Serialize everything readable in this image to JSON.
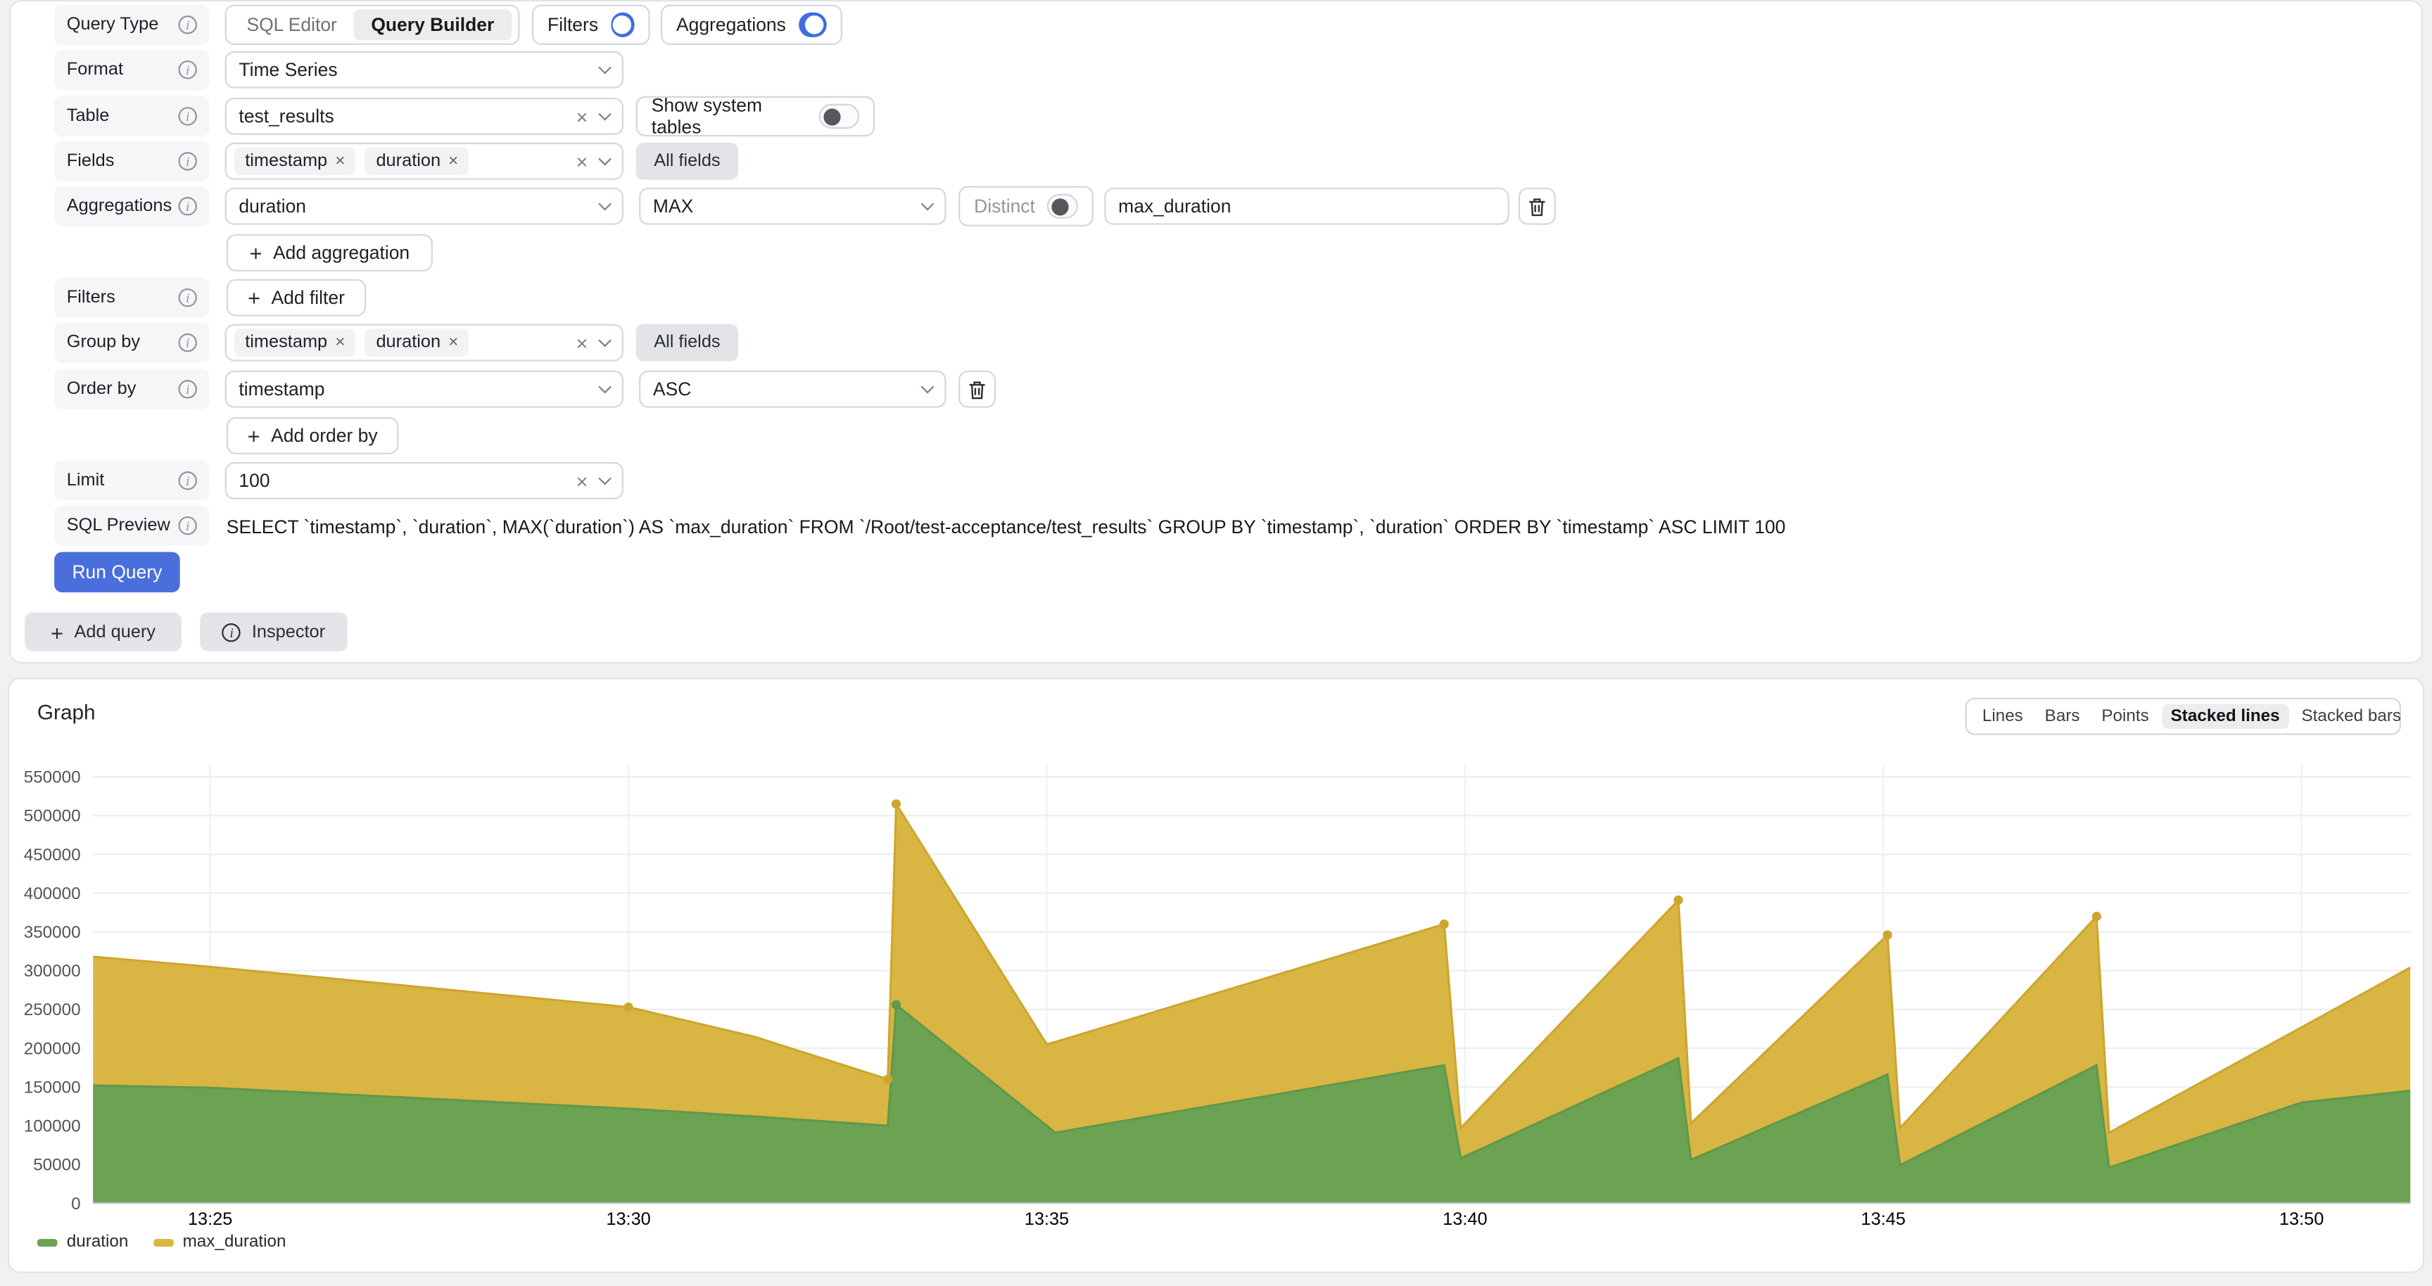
{
  "icons": {
    "plus": "+",
    "close": "×",
    "clear": "×",
    "info": "i"
  },
  "colors": {
    "accent_blue": "#3f6ce2",
    "run_button_blue": "#4a6edc",
    "duration_green": "#6ba352",
    "max_duration_yellow": "#d9b543"
  },
  "qb": {
    "query_type": {
      "label": "Query Type",
      "sql_editor": "SQL Editor",
      "query_builder": "Query Builder",
      "selected": "Query Builder",
      "filters": "Filters",
      "filters_on": true,
      "aggregations": "Aggregations",
      "aggregations_on": true
    },
    "format": {
      "label": "Format",
      "value": "Time Series"
    },
    "table": {
      "label": "Table",
      "value": "test_results",
      "show_system": "Show system tables",
      "show_system_on": false
    },
    "fields": {
      "label": "Fields",
      "tag1": "timestamp",
      "tag2": "duration",
      "all_fields": "All fields"
    },
    "agg": {
      "label": "Aggregations",
      "column": "duration",
      "func": "MAX",
      "distinct": "Distinct",
      "distinct_on": false,
      "alias": "max_duration",
      "add": "Add aggregation"
    },
    "filters": {
      "label": "Filters",
      "add": "Add filter"
    },
    "group_by": {
      "label": "Group by",
      "tag1": "timestamp",
      "tag2": "duration",
      "all_fields": "All fields"
    },
    "order_by": {
      "label": "Order by",
      "column": "timestamp",
      "dir": "ASC",
      "add": "Add order by"
    },
    "limit": {
      "label": "Limit",
      "value": "100"
    },
    "sql": {
      "label": "SQL Preview",
      "text": "SELECT `timestamp`, `duration`, MAX(`duration`) AS `max_duration` FROM `/Root/test-acceptance/test_results` GROUP BY `timestamp`, `duration` ORDER BY `timestamp` ASC LIMIT 100"
    },
    "run": "Run Query",
    "add_query": "Add query",
    "inspector": "Inspector"
  },
  "graph": {
    "title": "Graph",
    "modes": [
      "Lines",
      "Bars",
      "Points",
      "Stacked lines",
      "Stacked bars"
    ],
    "selected_mode": "Stacked lines"
  },
  "chart_data": {
    "type": "area",
    "stacked": true,
    "title": "Graph",
    "x_unit": "minutes after 13:00",
    "x": [
      23.6,
      25,
      30,
      31.5,
      33.1,
      33.2,
      35.0,
      35.1,
      39.75,
      39.95,
      42.55,
      42.7,
      45.05,
      45.2,
      47.55,
      47.7,
      50,
      51.3
    ],
    "series": [
      {
        "name": "duration",
        "fill": "#6ba352",
        "line": "#61984a",
        "values": [
          152000,
          149000,
          122000,
          112000,
          100000,
          256000,
          100000,
          91000,
          178000,
          58000,
          187000,
          56000,
          166000,
          49000,
          178000,
          46000,
          130000,
          145000
        ],
        "markers": [
          33.2
        ]
      },
      {
        "name": "max_duration",
        "fill": "#d9b543",
        "line": "#cda62e",
        "values": [
          166000,
          156000,
          131000,
          103000,
          60000,
          259000,
          105000,
          117000,
          182000,
          39000,
          204000,
          47000,
          180000,
          48000,
          192000,
          45000,
          97000,
          159000
        ],
        "markers": [
          30,
          33.1,
          33.2,
          39.75,
          42.55,
          45.05,
          47.55
        ]
      }
    ],
    "x_ticks": [
      {
        "t": 25,
        "label": "13:25"
      },
      {
        "t": 30,
        "label": "13:30"
      },
      {
        "t": 35,
        "label": "13:35"
      },
      {
        "t": 40,
        "label": "13:40"
      },
      {
        "t": 45,
        "label": "13:45"
      },
      {
        "t": 50,
        "label": "13:50"
      }
    ],
    "y_ticks": [
      0,
      50000,
      100000,
      150000,
      200000,
      250000,
      300000,
      350000,
      400000,
      450000,
      500000,
      550000
    ],
    "ylim": [
      0,
      550000
    ],
    "grid": true,
    "legend_position": "bottom-left"
  }
}
